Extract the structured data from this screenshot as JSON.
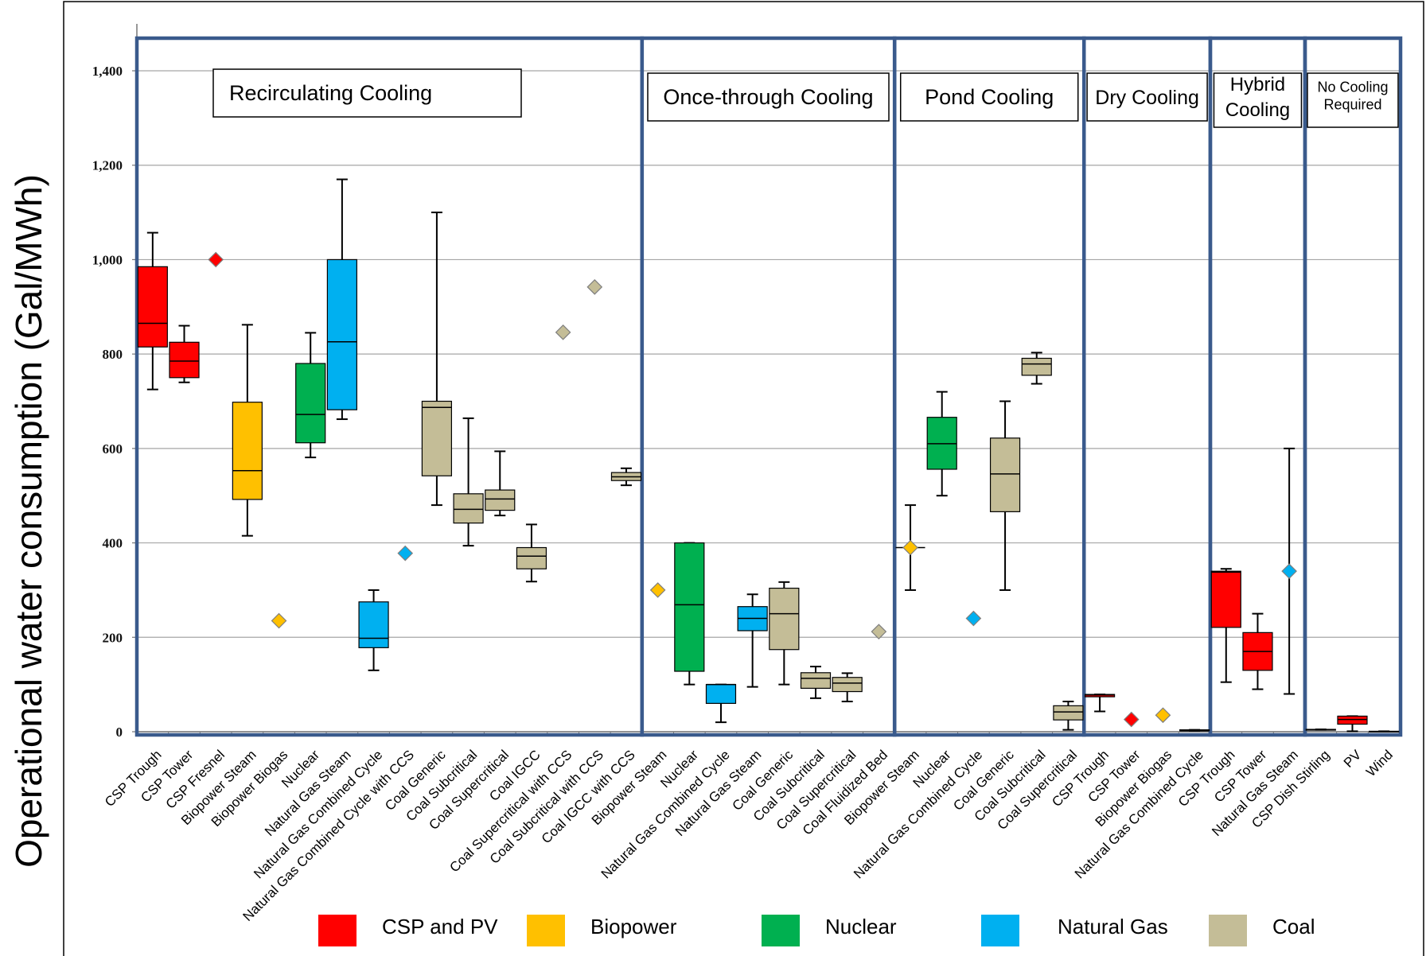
{
  "chart_data": {
    "type": "box",
    "ylabel": "Operational water consumption (Gal/MWh)",
    "ylim": [
      0,
      1400
    ],
    "yticks": [
      0,
      200,
      400,
      600,
      800,
      1000,
      1200,
      1400
    ],
    "ytick_labels": [
      "0",
      "200",
      "400",
      "600",
      "800",
      "1,000",
      "1,200",
      "1,400"
    ],
    "grid": true,
    "colors": {
      "CSP and PV": "#ff0000",
      "Biopower": "#ffc000",
      "Nuclear": "#00b050",
      "Natural Gas": "#00b0f0",
      "Coal": "#c4bd97"
    },
    "legend": [
      "CSP and PV",
      "Biopower",
      "Nuclear",
      "Natural Gas",
      "Coal"
    ],
    "sections": [
      {
        "label_lines": [
          "Recirculating Cooling"
        ],
        "categories": [
          {
            "name": "CSP Trough",
            "group": "CSP and PV",
            "min": 725,
            "q1": 815,
            "median": 865,
            "q3": 985,
            "max": 1057
          },
          {
            "name": "CSP Tower",
            "group": "CSP and PV",
            "min": 740,
            "q1": 750,
            "median": 785,
            "q3": 825,
            "max": 860
          },
          {
            "name": "CSP Fresnel",
            "group": "CSP and PV",
            "point": 1000
          },
          {
            "name": "Biopower Steam",
            "group": "Biopower",
            "min": 415,
            "q1": 492,
            "median": 553,
            "q3": 698,
            "max": 862
          },
          {
            "name": "Biopower Biogas",
            "group": "Biopower",
            "point": 235
          },
          {
            "name": "Nuclear",
            "group": "Nuclear",
            "min": 581,
            "q1": 612,
            "median": 672,
            "q3": 780,
            "max": 845
          },
          {
            "name": "Natural Gas Steam",
            "group": "Natural Gas",
            "min": 662,
            "q1": 682,
            "median": 826,
            "q3": 1000,
            "max": 1170
          },
          {
            "name": "Natural Gas Combined Cycle",
            "group": "Natural Gas",
            "min": 130,
            "q1": 178,
            "median": 198,
            "q3": 275,
            "max": 300
          },
          {
            "name": "Natural Gas Combined Cycle with CCS",
            "group": "Natural Gas",
            "point": 378
          },
          {
            "name": "Coal Generic",
            "group": "Coal",
            "min": 480,
            "q1": 542,
            "median": 687,
            "q3": 700,
            "max": 1100
          },
          {
            "name": "Coal Subcritical",
            "group": "Coal",
            "min": 394,
            "q1": 442,
            "median": 471,
            "q3": 504,
            "max": 664
          },
          {
            "name": "Coal Supercritical",
            "group": "Coal",
            "min": 458,
            "q1": 469,
            "median": 493,
            "q3": 512,
            "max": 594
          },
          {
            "name": "Coal IGCC",
            "group": "Coal",
            "min": 318,
            "q1": 345,
            "median": 372,
            "q3": 390,
            "max": 439
          },
          {
            "name": "Coal Supercritical with CCS",
            "group": "Coal",
            "point": 846
          },
          {
            "name": "Coal Subcritical with CCS",
            "group": "Coal",
            "point": 942
          },
          {
            "name": "Coal IGCC with CCS",
            "group": "Coal",
            "min": 522,
            "q1": 532,
            "median": 540,
            "q3": 549,
            "max": 558
          }
        ]
      },
      {
        "label_lines": [
          "Once-through Cooling"
        ],
        "categories": [
          {
            "name": "Biopower Steam",
            "group": "Biopower",
            "point": 300
          },
          {
            "name": "Nuclear",
            "group": "Nuclear",
            "min": 100,
            "q1": 128,
            "median": 269,
            "q3": 400,
            "max": 400
          },
          {
            "name": "Natural Gas Combined Cycle",
            "group": "Natural Gas",
            "min": 20,
            "q1": 60,
            "median": 100,
            "q3": 100,
            "max": 100
          },
          {
            "name": "Natural Gas Steam",
            "group": "Natural Gas",
            "min": 95,
            "q1": 214,
            "median": 240,
            "q3": 265,
            "max": 291
          },
          {
            "name": "Coal Generic",
            "group": "Coal",
            "min": 100,
            "q1": 174,
            "median": 250,
            "q3": 304,
            "max": 317
          },
          {
            "name": "Coal Subcritical",
            "group": "Coal",
            "min": 71,
            "q1": 92,
            "median": 113,
            "q3": 125,
            "max": 138
          },
          {
            "name": "Coal Supercritical",
            "group": "Coal",
            "min": 64,
            "q1": 85,
            "median": 103,
            "q3": 115,
            "max": 124
          },
          {
            "name": "Coal Fluidized Bed",
            "group": "Coal",
            "point": 212
          }
        ]
      },
      {
        "label_lines": [
          "Pond Cooling"
        ],
        "categories": [
          {
            "name": "Biopower Steam",
            "group": "Biopower",
            "min": 300,
            "q1": 390,
            "median": 390,
            "q3": 390,
            "max": 480,
            "point": 390
          },
          {
            "name": "Nuclear",
            "group": "Nuclear",
            "min": 500,
            "q1": 556,
            "median": 610,
            "q3": 666,
            "max": 720
          },
          {
            "name": "Natural Gas Combined Cycle",
            "group": "Natural Gas",
            "point": 240
          },
          {
            "name": "Coal Generic",
            "group": "Coal",
            "min": 300,
            "q1": 466,
            "median": 546,
            "q3": 622,
            "max": 700
          },
          {
            "name": "Coal Subcritical",
            "group": "Coal",
            "min": 737,
            "q1": 755,
            "median": 779,
            "q3": 791,
            "max": 803
          },
          {
            "name": "Coal Supercritical",
            "group": "Coal",
            "min": 4,
            "q1": 25,
            "median": 42,
            "q3": 55,
            "max": 64
          }
        ]
      },
      {
        "label_lines": [
          "Dry Cooling"
        ],
        "categories": [
          {
            "name": "CSP Trough",
            "group": "CSP and PV",
            "min": 43,
            "q1": 74,
            "median": 78,
            "q3": 79,
            "max": 79
          },
          {
            "name": "CSP Tower",
            "group": "CSP and PV",
            "point": 26
          },
          {
            "name": "Biopower Biogas",
            "group": "Biopower",
            "point": 35
          },
          {
            "name": "Natural Gas Combined Cycle",
            "group": "Natural Gas",
            "min": 2,
            "q1": 2,
            "median": 2,
            "q3": 4,
            "max": 4
          }
        ]
      },
      {
        "label_lines": [
          "Hybrid",
          "Cooling"
        ],
        "categories": [
          {
            "name": "CSP Trough",
            "group": "CSP and PV",
            "min": 105,
            "q1": 221,
            "median": 338,
            "q3": 340,
            "max": 345
          },
          {
            "name": "CSP Tower",
            "group": "CSP and PV",
            "min": 90,
            "q1": 130,
            "median": 170,
            "q3": 210,
            "max": 250
          },
          {
            "name": "Natural Gas Steam",
            "group": "Natural Gas",
            "min": 80,
            "max": 600,
            "point": 340
          }
        ]
      },
      {
        "label_lines": [
          "No Cooling",
          "Required"
        ],
        "categories": [
          {
            "name": "CSP Dish Stirling",
            "group": "CSP and PV",
            "min": 4,
            "q1": 4,
            "median": 4,
            "q3": 5,
            "max": 5
          },
          {
            "name": "PV",
            "group": "CSP and PV",
            "min": 1,
            "q1": 16,
            "median": 26,
            "q3": 33,
            "max": 33
          },
          {
            "name": "Wind",
            "group": "CSP and PV",
            "min": 0,
            "q1": 0,
            "median": 0,
            "q3": 1,
            "max": 1
          }
        ]
      }
    ]
  }
}
